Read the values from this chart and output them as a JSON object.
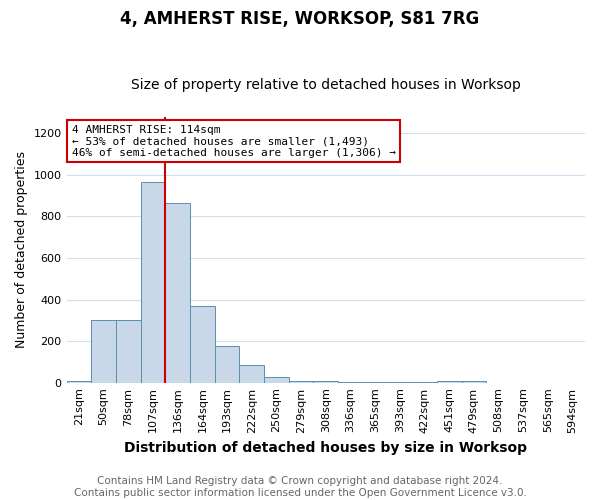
{
  "title": "4, AMHERST RISE, WORKSOP, S81 7RG",
  "subtitle": "Size of property relative to detached houses in Worksop",
  "xlabel": "Distribution of detached houses by size in Worksop",
  "ylabel": "Number of detached properties",
  "categories": [
    "21sqm",
    "50sqm",
    "78sqm",
    "107sqm",
    "136sqm",
    "164sqm",
    "193sqm",
    "222sqm",
    "250sqm",
    "279sqm",
    "308sqm",
    "336sqm",
    "365sqm",
    "393sqm",
    "422sqm",
    "451sqm",
    "479sqm",
    "508sqm",
    "537sqm",
    "565sqm",
    "594sqm"
  ],
  "values": [
    10,
    302,
    302,
    968,
    865,
    370,
    178,
    85,
    27,
    10,
    8,
    5,
    5,
    5,
    5,
    10,
    10,
    0,
    0,
    0,
    0
  ],
  "bar_color": "#c8d8e8",
  "bar_edge_color": "#5a8faf",
  "vline_x_index": 3,
  "vline_color": "#cc0000",
  "annotation_text": "4 AMHERST RISE: 114sqm\n← 53% of detached houses are smaller (1,493)\n46% of semi-detached houses are larger (1,306) →",
  "annotation_box_color": "#ffffff",
  "annotation_box_edge_color": "#cc0000",
  "footer": "Contains HM Land Registry data © Crown copyright and database right 2024.\nContains public sector information licensed under the Open Government Licence v3.0.",
  "ylim": [
    0,
    1280
  ],
  "yticks": [
    0,
    200,
    400,
    600,
    800,
    1000,
    1200
  ],
  "title_fontsize": 12,
  "subtitle_fontsize": 10,
  "xlabel_fontsize": 10,
  "ylabel_fontsize": 9,
  "tick_fontsize": 8,
  "annotation_fontsize": 8,
  "footer_fontsize": 7.5,
  "background_color": "#ffffff",
  "grid_color": "#d0e0ee",
  "figwidth": 6.0,
  "figheight": 5.0,
  "dpi": 100
}
